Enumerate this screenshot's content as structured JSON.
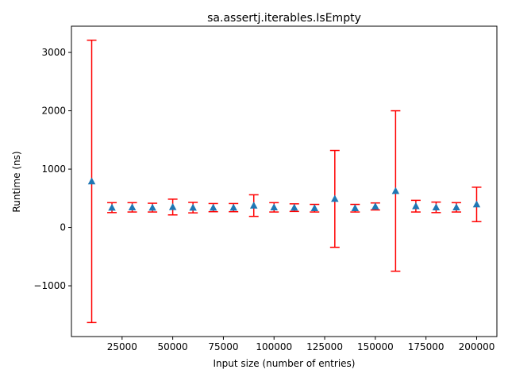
{
  "chart_data": {
    "type": "scatter",
    "title": "sa.assertj.iterables.IsEmpty",
    "xlabel": "Input size (number of entries)",
    "ylabel": "Runtime (ns)",
    "xlim": [
      0,
      210000
    ],
    "ylim": [
      -1870,
      3450
    ],
    "xticks": [
      25000,
      50000,
      75000,
      100000,
      125000,
      150000,
      175000,
      200000
    ],
    "xtick_labels": [
      "25000",
      "50000",
      "75000",
      "100000",
      "125000",
      "150000",
      "175000",
      "200000"
    ],
    "yticks": [
      -1000,
      0,
      1000,
      2000,
      3000
    ],
    "ytick_labels": [
      "−1000",
      "0",
      "1000",
      "2000",
      "3000"
    ],
    "grid": false,
    "marker": "triangle",
    "marker_color": "#1f77b4",
    "errorbar_color": "#ff0000",
    "series": [
      {
        "x": [
          10000,
          20000,
          30000,
          40000,
          50000,
          60000,
          70000,
          80000,
          90000,
          100000,
          110000,
          120000,
          130000,
          140000,
          150000,
          160000,
          170000,
          180000,
          190000,
          200000
        ],
        "y": [
          790,
          340,
          345,
          340,
          350,
          340,
          340,
          340,
          375,
          345,
          340,
          330,
          490,
          330,
          360,
          625,
          365,
          345,
          345,
          395
        ],
        "err_low": [
          -1630,
          255,
          265,
          265,
          215,
          250,
          270,
          270,
          190,
          265,
          275,
          265,
          -340,
          265,
          300,
          -750,
          265,
          255,
          265,
          100
        ],
        "err_high": [
          3210,
          425,
          425,
          415,
          485,
          430,
          410,
          410,
          560,
          425,
          405,
          395,
          1320,
          395,
          420,
          2000,
          465,
          435,
          425,
          690
        ]
      }
    ]
  }
}
